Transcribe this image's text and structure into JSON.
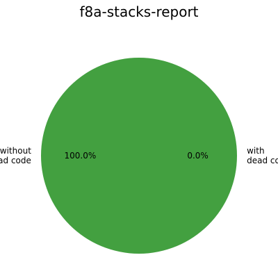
{
  "chart_data": {
    "type": "pie",
    "title": "f8a-stacks-report",
    "slices": [
      {
        "label_lines": [
          "without",
          "dead code"
        ],
        "value": 100.0,
        "pct_label": "100.0%",
        "color": "#43a040"
      },
      {
        "label_lines": [
          "with",
          "dead code"
        ],
        "value": 0.0,
        "pct_label": "0.0%",
        "color": "#e53935"
      }
    ],
    "grid": false,
    "legend": "none"
  }
}
